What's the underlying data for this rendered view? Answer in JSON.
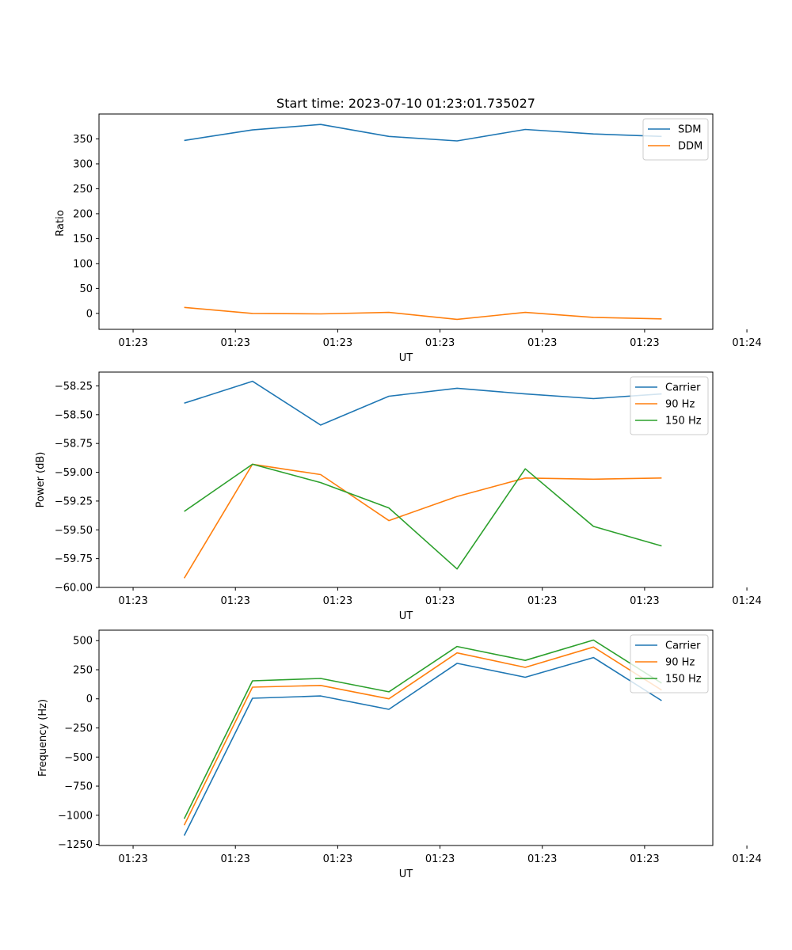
{
  "chart_data": [
    {
      "type": "line",
      "title": "Start time: 2023-07-10 01:23:01.735027",
      "xlabel": "UT",
      "ylabel": "Ratio",
      "xlim": [
        -0.5,
        8.5
      ],
      "ylim": [
        -32,
        400
      ],
      "x_ticks": [
        {
          "value": 0,
          "label": "01:23"
        },
        {
          "value": 1.5,
          "label": "01:23"
        },
        {
          "value": 3,
          "label": "01:23"
        },
        {
          "value": 4.5,
          "label": "01:23"
        },
        {
          "value": 6,
          "label": "01:23"
        },
        {
          "value": 7.5,
          "label": "01:23"
        },
        {
          "value": 9,
          "label": "01:24"
        }
      ],
      "y_ticks": [
        0,
        50,
        100,
        150,
        200,
        250,
        300,
        350
      ],
      "x": [
        0.75,
        1.75,
        2.75,
        3.75,
        4.75,
        5.75,
        6.75,
        7.75
      ],
      "series": [
        {
          "name": "SDM",
          "color": "#1f77b4",
          "values": [
            347,
            368,
            379,
            355,
            346,
            369,
            360,
            355
          ]
        },
        {
          "name": "DDM",
          "color": "#ff7f0e",
          "values": [
            12,
            0,
            -1,
            2,
            -12,
            2,
            -8,
            -11
          ]
        }
      ],
      "legend": "top-right"
    },
    {
      "type": "line",
      "title": "",
      "xlabel": "UT",
      "ylabel": "Power (dB)",
      "xlim": [
        -0.5,
        8.5
      ],
      "ylim": [
        -60.0,
        -58.13
      ],
      "x_ticks": [
        {
          "value": 0,
          "label": "01:23"
        },
        {
          "value": 1.5,
          "label": "01:23"
        },
        {
          "value": 3,
          "label": "01:23"
        },
        {
          "value": 4.5,
          "label": "01:23"
        },
        {
          "value": 6,
          "label": "01:23"
        },
        {
          "value": 7.5,
          "label": "01:23"
        },
        {
          "value": 9,
          "label": "01:24"
        }
      ],
      "y_ticks": [
        -60.0,
        -59.75,
        -59.5,
        -59.25,
        -59.0,
        -58.75,
        -58.5,
        -58.25
      ],
      "y_tick_labels": [
        "−60.00",
        "−59.75",
        "−59.50",
        "−59.25",
        "−59.00",
        "−58.75",
        "−58.50",
        "−58.25"
      ],
      "x": [
        0.75,
        1.75,
        2.75,
        3.75,
        4.75,
        5.75,
        6.75,
        7.75
      ],
      "series": [
        {
          "name": "Carrier",
          "color": "#1f77b4",
          "values": [
            -58.4,
            -58.21,
            -58.59,
            -58.34,
            -58.27,
            -58.32,
            -58.36,
            -58.32
          ]
        },
        {
          "name": "90 Hz",
          "color": "#ff7f0e",
          "values": [
            -59.92,
            -58.93,
            -59.02,
            -59.42,
            -59.21,
            -59.05,
            -59.06,
            -59.05
          ]
        },
        {
          "name": "150 Hz",
          "color": "#2ca02c",
          "values": [
            -59.34,
            -58.93,
            -59.09,
            -59.31,
            -59.84,
            -58.97,
            -59.47,
            -59.64
          ]
        }
      ],
      "legend": "top-right"
    },
    {
      "type": "line",
      "title": "",
      "xlabel": "UT",
      "ylabel": "Frequency (Hz)",
      "xlim": [
        -0.5,
        8.5
      ],
      "ylim": [
        -1260,
        590
      ],
      "x_ticks": [
        {
          "value": 0,
          "label": "01:23"
        },
        {
          "value": 1.5,
          "label": "01:23"
        },
        {
          "value": 3,
          "label": "01:23"
        },
        {
          "value": 4.5,
          "label": "01:23"
        },
        {
          "value": 6,
          "label": "01:23"
        },
        {
          "value": 7.5,
          "label": "01:23"
        },
        {
          "value": 9,
          "label": "01:24"
        }
      ],
      "y_ticks": [
        -1250,
        -1000,
        -750,
        -500,
        -250,
        0,
        250,
        500
      ],
      "y_tick_labels": [
        "−1250",
        "−1000",
        "−750",
        "−500",
        "−250",
        "0",
        "250",
        "500"
      ],
      "x": [
        0.75,
        1.75,
        2.75,
        3.75,
        4.75,
        5.75,
        6.75,
        7.75
      ],
      "series": [
        {
          "name": "Carrier",
          "color": "#1f77b4",
          "values": [
            -1175,
            5,
            25,
            -90,
            305,
            185,
            355,
            -15
          ]
        },
        {
          "name": "90 Hz",
          "color": "#ff7f0e",
          "values": [
            -1085,
            100,
            115,
            0,
            395,
            270,
            445,
            75
          ]
        },
        {
          "name": "150 Hz",
          "color": "#2ca02c",
          "values": [
            -1030,
            155,
            175,
            60,
            450,
            330,
            505,
            135
          ]
        }
      ],
      "legend": "top-right"
    }
  ]
}
